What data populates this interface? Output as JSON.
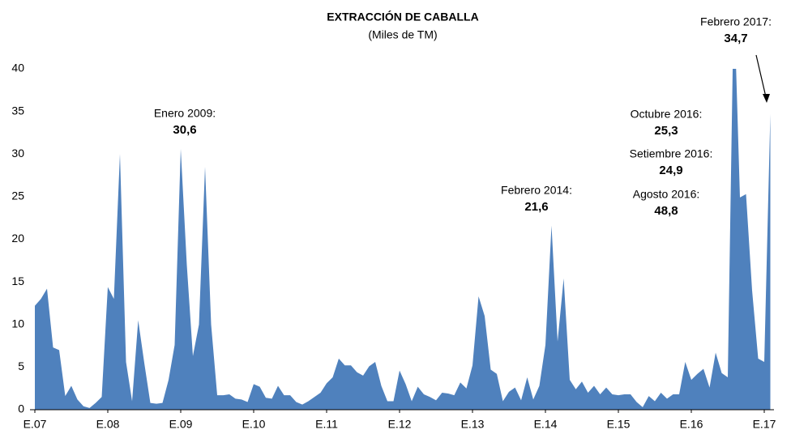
{
  "chart_data": {
    "type": "area",
    "title": "EXTRACCIÓN DE CABALLA",
    "subtitle": "(Miles de TM)",
    "color": "#4f81bd",
    "categories": [
      "E.07",
      null,
      null,
      null,
      null,
      null,
      null,
      null,
      null,
      null,
      null,
      null,
      "E.08",
      null,
      null,
      null,
      null,
      null,
      null,
      null,
      null,
      null,
      null,
      null,
      "E.09",
      null,
      null,
      null,
      null,
      null,
      null,
      null,
      null,
      null,
      null,
      null,
      "E.10",
      null,
      null,
      null,
      null,
      null,
      null,
      null,
      null,
      null,
      null,
      null,
      "E.11",
      null,
      null,
      null,
      null,
      null,
      null,
      null,
      null,
      null,
      null,
      null,
      "E.12",
      null,
      null,
      null,
      null,
      null,
      null,
      null,
      null,
      null,
      null,
      null,
      "E.13",
      null,
      null,
      null,
      null,
      null,
      null,
      null,
      null,
      null,
      null,
      null,
      "E.14",
      null,
      null,
      null,
      null,
      null,
      null,
      null,
      null,
      null,
      null,
      null,
      "E.15",
      null,
      null,
      null,
      null,
      null,
      null,
      null,
      null,
      null,
      null,
      null,
      "E.16",
      null,
      null,
      null,
      null,
      null,
      null,
      null,
      null,
      null,
      null,
      null,
      "E.17",
      null
    ],
    "values": [
      12.2,
      13,
      14.2,
      7.3,
      7,
      1.6,
      2.8,
      1.2,
      0.4,
      0.2,
      0.8,
      1.5,
      14.4,
      13,
      30,
      5.6,
      1,
      10.5,
      5.5,
      0.8,
      0.7,
      0.8,
      3.5,
      7.6,
      30.6,
      17,
      6.3,
      10,
      28.5,
      10,
      1.7,
      1.7,
      1.8,
      1.3,
      1.2,
      0.9,
      3,
      2.7,
      1.4,
      1.3,
      2.8,
      1.7,
      1.7,
      0.9,
      0.6,
      1,
      1.5,
      2,
      3.1,
      3.8,
      6,
      5.2,
      5.2,
      4.4,
      4,
      5.1,
      5.6,
      2.8,
      1,
      1,
      4.6,
      3,
      1,
      2.7,
      1.8,
      1.5,
      1.1,
      2,
      1.9,
      1.7,
      3.2,
      2.5,
      5.2,
      13.3,
      11,
      4.7,
      4.2,
      1,
      2.1,
      2.6,
      1.1,
      3.8,
      1.2,
      2.8,
      7.6,
      21.6,
      8,
      15.4,
      3.5,
      2.4,
      3.3,
      2,
      2.8,
      1.8,
      2.6,
      1.8,
      1.7,
      1.8,
      1.8,
      0.9,
      0.3,
      1.6,
      1,
      2,
      1.3,
      1.8,
      1.8,
      5.6,
      3.5,
      4.2,
      4.8,
      2.6,
      6.7,
      4.3,
      3.8,
      48.8,
      24.9,
      25.3,
      14,
      6,
      5.6,
      34.7
    ],
    "ylim": [
      0,
      40
    ],
    "yticks": [
      0,
      5,
      10,
      15,
      20,
      25,
      30,
      35,
      40
    ],
    "grid": false,
    "annotations": [
      {
        "label": "Enero 2009:",
        "value": "30,6"
      },
      {
        "label": "Febrero 2014:",
        "value": "21,6"
      },
      {
        "label": "Octubre 2016:",
        "value": "25,3"
      },
      {
        "label": "Setiembre 2016:",
        "value": "24,9"
      },
      {
        "label": "Agosto 2016:",
        "value": "48,8"
      },
      {
        "label": "Febrero 2017:",
        "value": "34,7"
      }
    ]
  }
}
